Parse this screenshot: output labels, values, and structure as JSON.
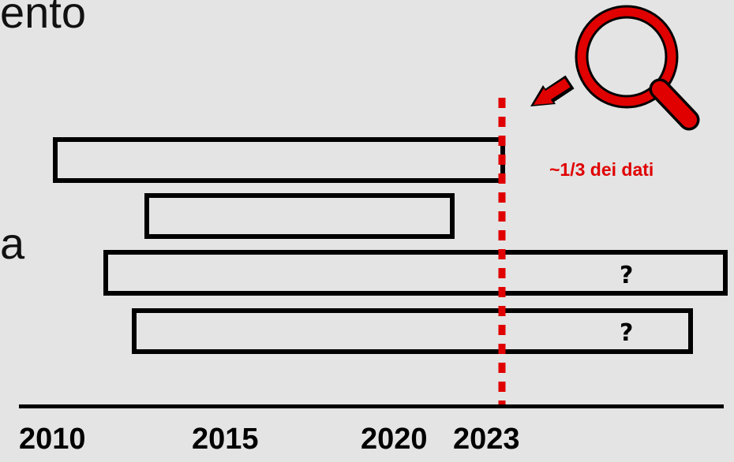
{
  "text_fragments": {
    "top": "ento",
    "middle": "a"
  },
  "timeline": {
    "years": [
      "2010",
      "2015",
      "2020",
      "2023"
    ],
    "marker_year": "2023",
    "unknown_mark": "?"
  },
  "annotation": {
    "label": "~1/3 dei dati",
    "icon": "magnifier-icon",
    "pointer": "arrow-icon"
  },
  "colors": {
    "background": "#e4e4e4",
    "accent": "#e00000",
    "ink": "#000000"
  }
}
